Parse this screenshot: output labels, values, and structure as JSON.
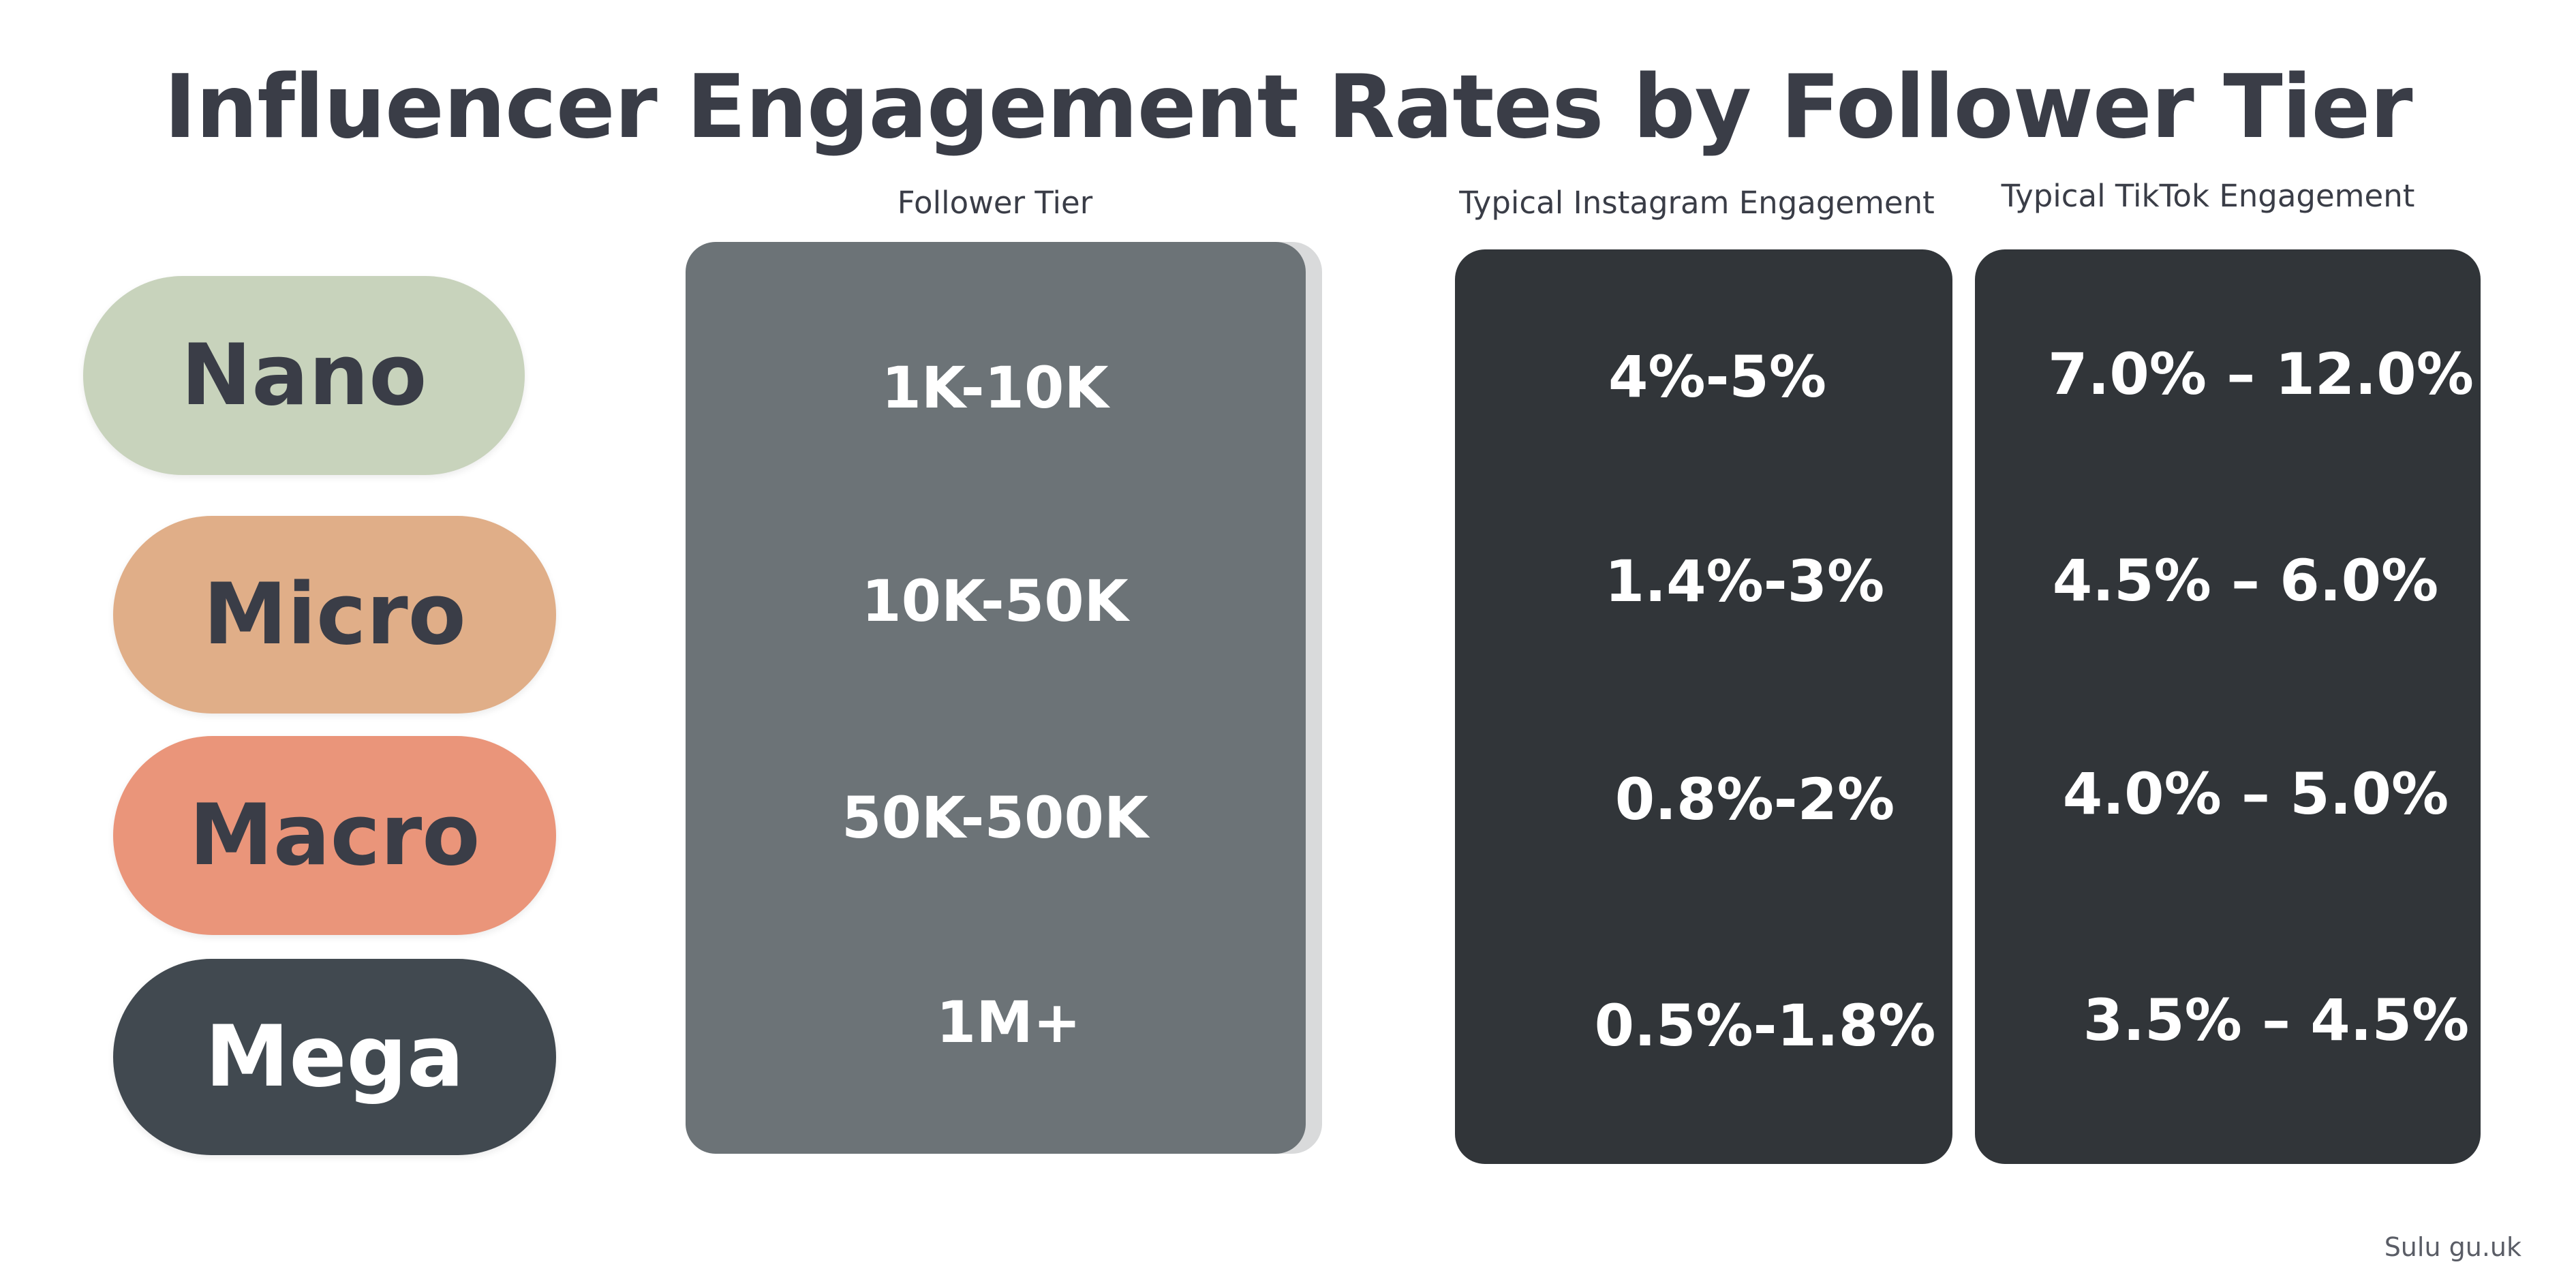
{
  "chart_data": {
    "type": "table",
    "title": "Influencer Engagement Rates by Follower Tier",
    "columns": [
      "Follower Tier",
      "Typical Instagram Engagement",
      "Typical TikTok Engagement"
    ],
    "rows": [
      {
        "tier": "Nano",
        "followers": "1K-10K",
        "instagram": "4%-5%",
        "tiktok": "7.0% – 12.0%"
      },
      {
        "tier": "Micro",
        "followers": "10K-50K",
        "instagram": "1.4%-3%",
        "tiktok": "4.5% – 6.0%"
      },
      {
        "tier": "Macro",
        "followers": "50K-500K",
        "instagram": "0.8%-2%",
        "tiktok": "4.0% – 5.0%"
      },
      {
        "tier": "Mega",
        "followers": "1M+",
        "instagram": "0.5%-1.8%",
        "tiktok": "3.5% – 4.5%"
      }
    ]
  },
  "colors": {
    "nano": "#c8d3bc",
    "micro": "#e0ae88",
    "macro": "#ea957a",
    "mega": "#414950",
    "tier_panel": "#6c7377",
    "engagement_panel": "#313539",
    "title_text": "#3a3d47"
  },
  "watermark": "Sulu gu.uk"
}
